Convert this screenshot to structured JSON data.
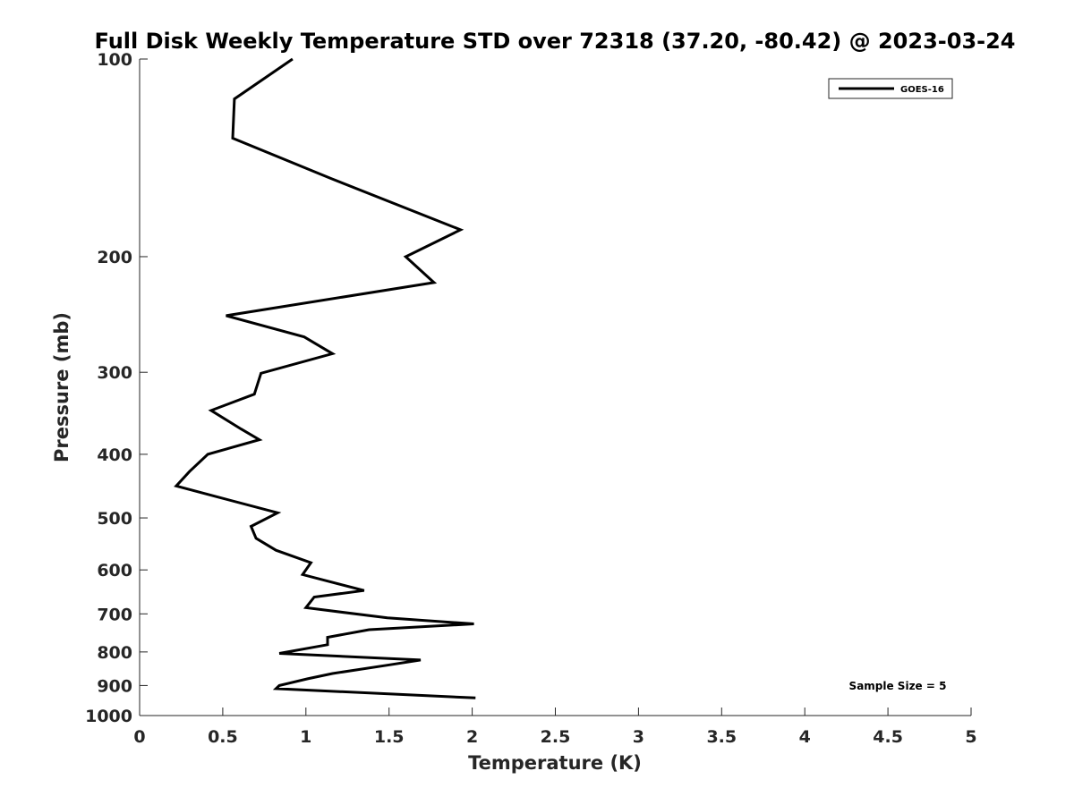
{
  "chart_data": {
    "type": "line",
    "title": "Full Disk Weekly Temperature STD over 72318 (37.20, -80.42) @ 2023-03-24",
    "xlabel": "Temperature (K)",
    "ylabel": "Pressure (mb)",
    "xlim": [
      0,
      5
    ],
    "ylim": [
      100,
      1000
    ],
    "y_scale": "log",
    "y_reversed": true,
    "grid": false,
    "legend_placement": "top-right",
    "x_ticks": [
      "0",
      "0.5",
      "1",
      "1.5",
      "2",
      "2.5",
      "3",
      "3.5",
      "4",
      "4.5",
      "5"
    ],
    "y_ticks": [
      "100",
      "200",
      "300",
      "400",
      "500",
      "600",
      "700",
      "800",
      "900",
      "1000"
    ],
    "series": [
      {
        "name": "GOES-16",
        "color": "#000000",
        "x": [
          0.92,
          0.57,
          0.56,
          1.15,
          1.93,
          1.6,
          1.77,
          0.52,
          0.99,
          1.16,
          0.73,
          0.69,
          0.43,
          0.61,
          0.72,
          0.41,
          0.3,
          0.22,
          0.46,
          0.83,
          0.67,
          0.7,
          0.82,
          1.03,
          0.98,
          1.35,
          1.05,
          1.0,
          1.49,
          2.01,
          1.38,
          1.13,
          1.13,
          0.84,
          1.69,
          1.49,
          1.16,
          1.01,
          0.84,
          0.82,
          2.02
        ],
        "y": [
          100,
          115,
          132,
          152,
          182,
          200,
          219,
          246,
          265,
          281,
          301,
          324,
          343,
          366,
          380,
          400,
          425,
          447,
          464,
          491,
          515,
          537,
          560,
          585,
          610,
          645,
          660,
          685,
          710,
          725,
          740,
          760,
          780,
          804,
          823,
          838,
          863,
          879,
          900,
          910,
          940
        ]
      }
    ],
    "annotations": {
      "sample_size": "Sample Size = 5"
    }
  }
}
